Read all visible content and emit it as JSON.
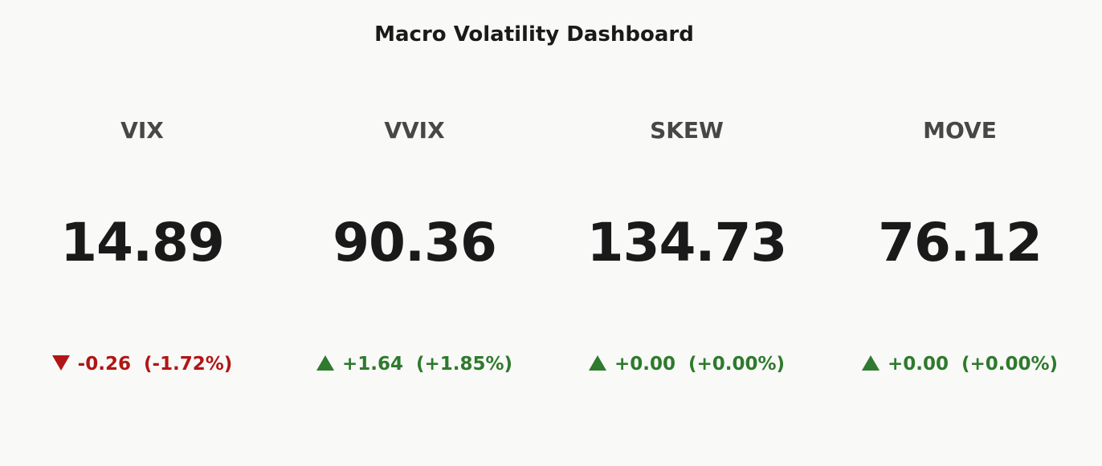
{
  "title": "Macro Volatility Dashboard",
  "colors": {
    "background": "#f9f9f7",
    "text": "#1a1a1a",
    "label": "#474747",
    "negative": "#b11515",
    "positive": "#2e7a2e"
  },
  "cards": [
    {
      "name": "VIX",
      "value": "14.89",
      "direction": "down",
      "arrow_icon": "triangle-down-icon",
      "change": "-0.26",
      "change_pct": "(-1.72%)"
    },
    {
      "name": "VVIX",
      "value": "90.36",
      "direction": "up",
      "arrow_icon": "triangle-up-icon",
      "change": "+1.64",
      "change_pct": "(+1.85%)"
    },
    {
      "name": "SKEW",
      "value": "134.73",
      "direction": "up",
      "arrow_icon": "triangle-up-icon",
      "change": "+0.00",
      "change_pct": "(+0.00%)"
    },
    {
      "name": "MOVE",
      "value": "76.12",
      "direction": "up",
      "arrow_icon": "triangle-up-icon",
      "change": "+0.00",
      "change_pct": "(+0.00%)"
    }
  ]
}
